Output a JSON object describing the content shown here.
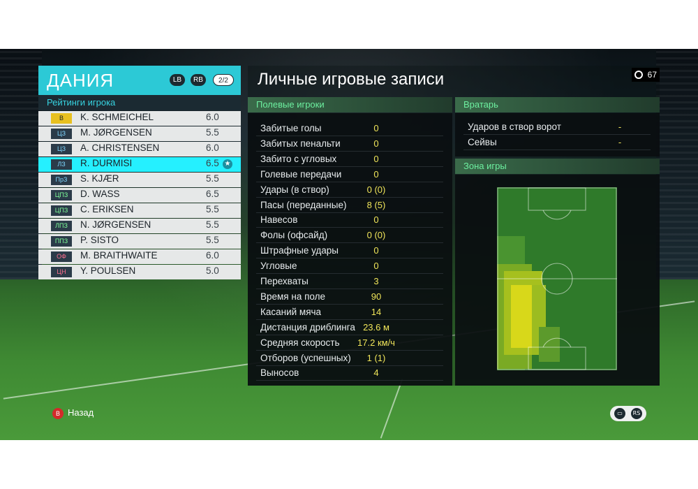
{
  "team": {
    "name": "ДАНИЯ",
    "lb_label": "LB",
    "rb_label": "RB",
    "page": "2/2",
    "ratings_header": "Рейтинги игрока"
  },
  "players": [
    {
      "pos": "В",
      "pos_color": "#e8c020",
      "pos_text_color": "#1b2228",
      "name": "K. SCHMEICHEL",
      "rating": "6.0"
    },
    {
      "pos": "ЦЗ",
      "pos_color": "#2b3b49",
      "pos_text_color": "#7fd6ff",
      "name": "M. JØRGENSEN",
      "rating": "5.5"
    },
    {
      "pos": "ЦЗ",
      "pos_color": "#2b3b49",
      "pos_text_color": "#7fd6ff",
      "name": "A. CHRISTENSEN",
      "rating": "6.0"
    },
    {
      "pos": "ЛЗ",
      "pos_color": "#2b3b49",
      "pos_text_color": "#7fd6ff",
      "name": "R. DURMISI",
      "rating": "6.5",
      "selected": true
    },
    {
      "pos": "ПрЗ",
      "pos_color": "#2b3b49",
      "pos_text_color": "#7fd6ff",
      "name": "S. KJÆR",
      "rating": "5.5"
    },
    {
      "pos": "ЦПЗ",
      "pos_color": "#2b3b49",
      "pos_text_color": "#7fff9a",
      "name": "D. WASS",
      "rating": "6.5"
    },
    {
      "pos": "ЦПЗ",
      "pos_color": "#2b3b49",
      "pos_text_color": "#7fff9a",
      "name": "C. ERIKSEN",
      "rating": "5.5"
    },
    {
      "pos": "ЛПЗ",
      "pos_color": "#2b3b49",
      "pos_text_color": "#7fff9a",
      "name": "N. JØRGENSEN",
      "rating": "5.5"
    },
    {
      "pos": "ППЗ",
      "pos_color": "#2b3b49",
      "pos_text_color": "#7fff9a",
      "name": "P. SISTO",
      "rating": "5.5"
    },
    {
      "pos": "ОФ",
      "pos_color": "#2b3b49",
      "pos_text_color": "#ff6f8f",
      "name": "M. BRAITHWAITE",
      "rating": "6.0"
    },
    {
      "pos": "ЦН",
      "pos_color": "#2b3b49",
      "pos_text_color": "#ff6f8f",
      "name": "Y. POULSEN",
      "rating": "5.0"
    }
  ],
  "main": {
    "title": "Личные игровые записи",
    "timer": "67",
    "field_header": "Полевые игроки",
    "gk_header": "Вратарь",
    "zone_header": "Зона игры"
  },
  "field_stats": [
    {
      "label": "Забитые голы",
      "value": "0"
    },
    {
      "label": "Забитых пенальти",
      "value": "0"
    },
    {
      "label": "Забито с угловых",
      "value": "0"
    },
    {
      "label": "Голевые передачи",
      "value": "0"
    },
    {
      "label": "Удары (в створ)",
      "value": "0 (0)"
    },
    {
      "label": "Пасы (переданные)",
      "value": "8 (5)"
    },
    {
      "label": "Навесов",
      "value": "0"
    },
    {
      "label": "Фолы (офсайд)",
      "value": "0 (0)"
    },
    {
      "label": "Штрафные удары",
      "value": "0"
    },
    {
      "label": "Угловые",
      "value": "0"
    },
    {
      "label": "Перехваты",
      "value": "3"
    },
    {
      "label": "Время на поле",
      "value": "90"
    },
    {
      "label": "Касаний мяча",
      "value": "14"
    },
    {
      "label": "Дистанция дриблинга",
      "value": "23.6 м"
    },
    {
      "label": "Средняя скорость",
      "value": "17.2 км/ч"
    },
    {
      "label": "Отборов (успешных)",
      "value": "1 (1)"
    },
    {
      "label": "Выносов",
      "value": "4"
    }
  ],
  "gk_stats": [
    {
      "label": "Ударов в створ ворот",
      "value": "-"
    },
    {
      "label": "Сейвы",
      "value": "-"
    }
  ],
  "footer": {
    "back_icon": "B",
    "back_label": "Назад",
    "chat_icon": "chat-icon",
    "rs_icon": "RS"
  },
  "colors": {
    "accent": "#2cc9d6",
    "stat_value": "#f0e55a",
    "section_text": "#6df0a0"
  }
}
